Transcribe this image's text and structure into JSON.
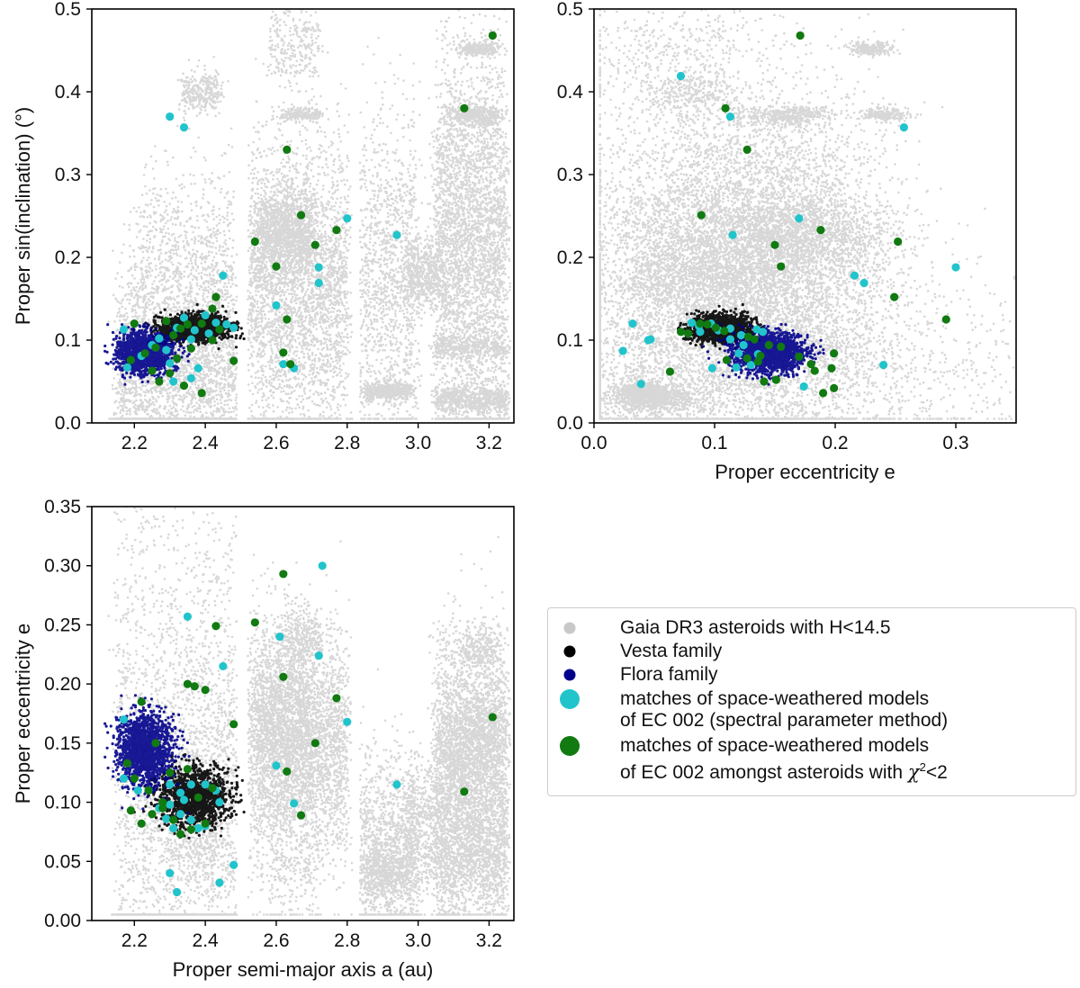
{
  "colors": {
    "background": "#d3d3d3",
    "vesta": "#000000",
    "flora": "#00008b",
    "cyan": "#17becf",
    "green": "#117a11",
    "legend_gaia": "#c8c8c8",
    "cyan_marker": "#22c4cc",
    "green_marker": "#117a11"
  },
  "legend": {
    "gaia": "Gaia DR3 asteroids with H<14.5",
    "vesta": "Vesta family",
    "flora": "Flora family",
    "cyan_line1": "matches of space-weathered models",
    "cyan_line2": "of EC 002 (spectral parameter method)",
    "green_line1": "matches of space-weathered models",
    "green_line2_prefix": "of EC 002 amongst asteroids with ",
    "green_chi": "χ",
    "green_sup": "2",
    "green_suffix": "<2"
  },
  "chart_data": [
    {
      "type": "scatter",
      "id": "a_vs_sini",
      "title": "",
      "xlabel": "",
      "ylabel": "Proper sin(inclination) (°)",
      "xlim": [
        2.08,
        3.27
      ],
      "ylim": [
        0.0,
        0.5
      ],
      "xticks": [
        "2.2",
        "2.4",
        "2.6",
        "2.8",
        "3.0",
        "3.2"
      ],
      "yticks": [
        "0.0",
        "0.1",
        "0.2",
        "0.3",
        "0.4",
        "0.5"
      ],
      "series": [
        {
          "name": "matches (spectral parameter method)",
          "color": "cyan",
          "points": [
            [
              2.3,
              0.37
            ],
            [
              2.34,
              0.357
            ],
            [
              2.8,
              0.247
            ],
            [
              2.94,
              0.227
            ],
            [
              2.72,
              0.188
            ],
            [
              2.72,
              0.169
            ],
            [
              2.45,
              0.178
            ],
            [
              2.6,
              0.142
            ],
            [
              2.17,
              0.113
            ],
            [
              2.32,
              0.115
            ],
            [
              2.34,
              0.127
            ],
            [
              2.37,
              0.112
            ],
            [
              2.4,
              0.13
            ],
            [
              2.43,
              0.121
            ],
            [
              2.46,
              0.119
            ],
            [
              2.48,
              0.115
            ],
            [
              2.25,
              0.094
            ],
            [
              2.29,
              0.088
            ],
            [
              2.36,
              0.101
            ],
            [
              2.3,
              0.072
            ],
            [
              2.18,
              0.067
            ],
            [
              2.22,
              0.081
            ],
            [
              2.38,
              0.066
            ],
            [
              2.62,
              0.071
            ],
            [
              2.65,
              0.066
            ],
            [
              2.31,
              0.05
            ],
            [
              2.36,
              0.054
            ],
            [
              2.27,
              0.102
            ],
            [
              2.41,
              0.108
            ]
          ]
        },
        {
          "name": "matches (chi2<2)",
          "color": "green",
          "points": [
            [
              3.21,
              0.468
            ],
            [
              3.13,
              0.38
            ],
            [
              2.63,
              0.33
            ],
            [
              2.67,
              0.251
            ],
            [
              2.77,
              0.233
            ],
            [
              2.54,
              0.219
            ],
            [
              2.71,
              0.215
            ],
            [
              2.6,
              0.189
            ],
            [
              2.43,
              0.152
            ],
            [
              2.42,
              0.138
            ],
            [
              2.63,
              0.125
            ],
            [
              2.2,
              0.12
            ],
            [
              2.29,
              0.123
            ],
            [
              2.33,
              0.114
            ],
            [
              2.35,
              0.119
            ],
            [
              2.39,
              0.12
            ],
            [
              2.44,
              0.113
            ],
            [
              2.31,
              0.106
            ],
            [
              2.26,
              0.091
            ],
            [
              2.23,
              0.084
            ],
            [
              2.19,
              0.076
            ],
            [
              2.25,
              0.063
            ],
            [
              2.3,
              0.06
            ],
            [
              2.32,
              0.078
            ],
            [
              2.27,
              0.05
            ],
            [
              2.34,
              0.045
            ],
            [
              2.39,
              0.036
            ],
            [
              2.62,
              0.085
            ],
            [
              2.64,
              0.071
            ],
            [
              2.48,
              0.075
            ],
            [
              2.36,
              0.09
            ],
            [
              2.42,
              0.1
            ]
          ]
        }
      ]
    },
    {
      "type": "scatter",
      "id": "e_vs_sini",
      "title": "",
      "xlabel": "Proper eccentricity e",
      "ylabel": "",
      "xlim": [
        0.0,
        0.35
      ],
      "ylim": [
        0.0,
        0.5
      ],
      "xticks": [
        "0.0",
        "0.1",
        "0.2",
        "0.3"
      ],
      "yticks": [
        "0.0",
        "0.1",
        "0.2",
        "0.3",
        "0.4",
        "0.5"
      ],
      "series": [
        {
          "name": "matches (spectral parameter method)",
          "color": "cyan",
          "points": [
            [
              0.072,
              0.419
            ],
            [
              0.113,
              0.37
            ],
            [
              0.257,
              0.357
            ],
            [
              0.17,
              0.247
            ],
            [
              0.115,
              0.227
            ],
            [
              0.3,
              0.188
            ],
            [
              0.216,
              0.178
            ],
            [
              0.224,
              0.169
            ],
            [
              0.032,
              0.12
            ],
            [
              0.024,
              0.087
            ],
            [
              0.047,
              0.101
            ],
            [
              0.045,
              0.1
            ],
            [
              0.081,
              0.121
            ],
            [
              0.087,
              0.117
            ],
            [
              0.097,
              0.12
            ],
            [
              0.103,
              0.112
            ],
            [
              0.113,
              0.114
            ],
            [
              0.122,
              0.106
            ],
            [
              0.135,
              0.113
            ],
            [
              0.14,
              0.11
            ],
            [
              0.113,
              0.101
            ],
            [
              0.12,
              0.084
            ],
            [
              0.124,
              0.094
            ],
            [
              0.136,
              0.083
            ],
            [
              0.098,
              0.066
            ],
            [
              0.118,
              0.067
            ],
            [
              0.13,
              0.07
            ],
            [
              0.039,
              0.047
            ],
            [
              0.174,
              0.044
            ],
            [
              0.24,
              0.07
            ],
            [
              0.088,
              0.11
            ]
          ]
        },
        {
          "name": "matches (chi2<2)",
          "color": "green",
          "points": [
            [
              0.171,
              0.468
            ],
            [
              0.109,
              0.38
            ],
            [
              0.127,
              0.33
            ],
            [
              0.089,
              0.251
            ],
            [
              0.188,
              0.233
            ],
            [
              0.252,
              0.219
            ],
            [
              0.15,
              0.215
            ],
            [
              0.155,
              0.189
            ],
            [
              0.249,
              0.152
            ],
            [
              0.292,
              0.125
            ],
            [
              0.088,
              0.12
            ],
            [
              0.094,
              0.119
            ],
            [
              0.101,
              0.115
            ],
            [
              0.072,
              0.11
            ],
            [
              0.078,
              0.108
            ],
            [
              0.108,
              0.111
            ],
            [
              0.128,
              0.104
            ],
            [
              0.133,
              0.101
            ],
            [
              0.145,
              0.094
            ],
            [
              0.155,
              0.092
            ],
            [
              0.17,
              0.08
            ],
            [
              0.18,
              0.071
            ],
            [
              0.199,
              0.084
            ],
            [
              0.197,
              0.066
            ],
            [
              0.183,
              0.063
            ],
            [
              0.199,
              0.042
            ],
            [
              0.19,
              0.036
            ],
            [
              0.141,
              0.05
            ],
            [
              0.151,
              0.052
            ],
            [
              0.127,
              0.078
            ],
            [
              0.138,
              0.081
            ],
            [
              0.136,
              0.074
            ],
            [
              0.11,
              0.076
            ],
            [
              0.063,
              0.062
            ]
          ]
        }
      ]
    },
    {
      "type": "scatter",
      "id": "a_vs_e",
      "title": "",
      "xlabel": "Proper semi-major axis a (au)",
      "ylabel": "Proper eccentricity e",
      "xlim": [
        2.08,
        3.27
      ],
      "ylim": [
        0.0,
        0.35
      ],
      "xticks": [
        "2.2",
        "2.4",
        "2.6",
        "2.8",
        "3.0",
        "3.2"
      ],
      "yticks": [
        "0.00",
        "0.05",
        "0.10",
        "0.15",
        "0.20",
        "0.25",
        "0.30",
        "0.35"
      ],
      "series": [
        {
          "name": "matches (spectral parameter method)",
          "color": "cyan",
          "points": [
            [
              2.73,
              0.3
            ],
            [
              2.35,
              0.257
            ],
            [
              2.61,
              0.24
            ],
            [
              2.72,
              0.224
            ],
            [
              2.45,
              0.215
            ],
            [
              2.17,
              0.17
            ],
            [
              2.8,
              0.168
            ],
            [
              2.6,
              0.131
            ],
            [
              2.65,
              0.099
            ],
            [
              2.94,
              0.115
            ],
            [
              2.17,
              0.12
            ],
            [
              2.21,
              0.11
            ],
            [
              2.3,
              0.115
            ],
            [
              2.33,
              0.108
            ],
            [
              2.36,
              0.115
            ],
            [
              2.4,
              0.115
            ],
            [
              2.43,
              0.11
            ],
            [
              2.34,
              0.102
            ],
            [
              2.3,
              0.098
            ],
            [
              2.33,
              0.09
            ],
            [
              2.29,
              0.086
            ],
            [
              2.36,
              0.085
            ],
            [
              2.4,
              0.08
            ],
            [
              2.38,
              0.078
            ],
            [
              2.31,
              0.078
            ],
            [
              2.27,
              0.095
            ],
            [
              2.44,
              0.1
            ],
            [
              2.3,
              0.04
            ],
            [
              2.32,
              0.024
            ],
            [
              2.44,
              0.032
            ],
            [
              2.48,
              0.047
            ]
          ]
        },
        {
          "name": "matches (chi2<2)",
          "color": "green",
          "points": [
            [
              2.62,
              0.293
            ],
            [
              2.54,
              0.252
            ],
            [
              2.43,
              0.249
            ],
            [
              2.62,
              0.206
            ],
            [
              2.35,
              0.2
            ],
            [
              2.37,
              0.198
            ],
            [
              2.4,
              0.195
            ],
            [
              2.77,
              0.188
            ],
            [
              2.22,
              0.185
            ],
            [
              2.48,
              0.166
            ],
            [
              3.21,
              0.172
            ],
            [
              2.71,
              0.15
            ],
            [
              2.26,
              0.15
            ],
            [
              2.18,
              0.133
            ],
            [
              2.2,
              0.12
            ],
            [
              2.3,
              0.125
            ],
            [
              2.35,
              0.128
            ],
            [
              2.63,
              0.126
            ],
            [
              2.24,
              0.11
            ],
            [
              2.28,
              0.1
            ],
            [
              2.19,
              0.093
            ],
            [
              2.22,
              0.082
            ],
            [
              2.25,
              0.09
            ],
            [
              2.28,
              0.095
            ],
            [
              2.31,
              0.085
            ],
            [
              2.33,
              0.073
            ],
            [
              2.36,
              0.077
            ],
            [
              2.4,
              0.082
            ],
            [
              2.67,
              0.089
            ],
            [
              3.13,
              0.109
            ],
            [
              2.42,
              0.112
            ],
            [
              2.38,
              0.104
            ]
          ]
        }
      ]
    }
  ]
}
